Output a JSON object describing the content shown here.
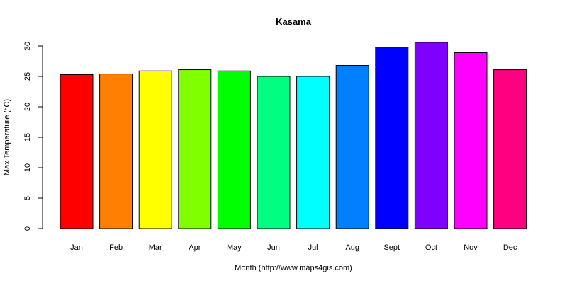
{
  "chart_data": {
    "type": "bar",
    "title": "Kasama",
    "xlabel": "Month (http://www.maps4gis.com)",
    "ylabel": "Max Temperature (°C)",
    "ylim": [
      0,
      30
    ],
    "yticks": [
      0,
      5,
      10,
      15,
      20,
      25,
      30
    ],
    "grid": false,
    "categories": [
      "Jan",
      "Feb",
      "Mar",
      "Apr",
      "May",
      "Jun",
      "Jul",
      "Aug",
      "Sept",
      "Oct",
      "Nov",
      "Dec"
    ],
    "values": [
      25.3,
      25.4,
      25.9,
      26.1,
      25.9,
      25.0,
      25.0,
      26.8,
      29.8,
      30.6,
      28.9,
      26.1
    ],
    "colors": [
      "#FF0000",
      "#FF8000",
      "#FFFF00",
      "#80FF00",
      "#00FF00",
      "#00FF80",
      "#00FFFF",
      "#0080FF",
      "#0000FF",
      "#8000FF",
      "#FF00FF",
      "#FF0080"
    ]
  }
}
